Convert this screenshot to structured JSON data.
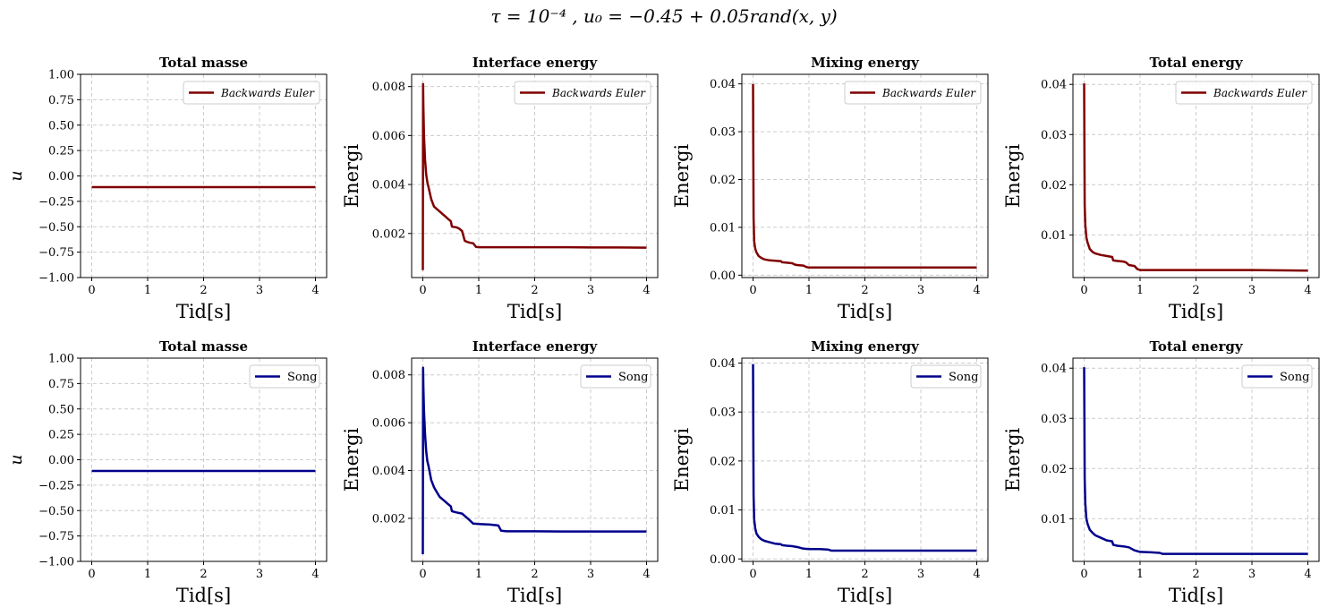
{
  "figure": {
    "suptitle": "τ = 10⁻⁴ , u₀ = −0.45 + 0.05rand(x, y)"
  },
  "chart_data": [
    {
      "type": "line",
      "title": "Total masse",
      "xlabel": "Tid[s]",
      "ylabel": "u",
      "xlim": [
        -0.2,
        4.2
      ],
      "ylim": [
        -1.0,
        1.0
      ],
      "xticks": [
        0,
        1,
        2,
        3,
        4
      ],
      "yticks": [
        -1.0,
        -0.75,
        -0.5,
        -0.25,
        0.0,
        0.25,
        0.5,
        0.75,
        1.0
      ],
      "ytick_labels": [
        "−1.00",
        "−0.75",
        "−0.50",
        "−0.25",
        "0.00",
        "0.25",
        "0.50",
        "0.75",
        "1.00"
      ],
      "grid": true,
      "legend": "top-right",
      "series": [
        {
          "name": "Backwards Euler",
          "color": "#800000",
          "x": [
            0,
            4
          ],
          "y": [
            -0.11,
            -0.11
          ]
        }
      ]
    },
    {
      "type": "line",
      "title": "Interface energy",
      "xlabel": "Tid[s]",
      "ylabel": "Energi",
      "xlim": [
        -0.2,
        4.2
      ],
      "ylim": [
        0.0002,
        0.0085
      ],
      "xticks": [
        0,
        1,
        2,
        3,
        4
      ],
      "yticks": [
        0.002,
        0.004,
        0.006,
        0.008
      ],
      "ytick_labels": [
        "0.002",
        "0.004",
        "0.006",
        "0.008"
      ],
      "grid": true,
      "legend": "top-right",
      "series": [
        {
          "name": "Backwards Euler",
          "color": "#800000",
          "x": [
            0,
            0.005,
            0.01,
            0.02,
            0.04,
            0.06,
            0.08,
            0.1,
            0.15,
            0.2,
            0.25,
            0.3,
            0.35,
            0.4,
            0.45,
            0.5,
            0.52,
            0.6,
            0.65,
            0.7,
            0.75,
            0.8,
            0.85,
            0.9,
            0.95,
            1.0,
            1.5,
            2.0,
            2.5,
            3.0,
            3.5,
            4.0
          ],
          "y": [
            0.0005,
            0.0081,
            0.0072,
            0.006,
            0.005,
            0.0044,
            0.0041,
            0.0039,
            0.0034,
            0.0031,
            0.003,
            0.0029,
            0.0028,
            0.0027,
            0.0026,
            0.0025,
            0.00228,
            0.00225,
            0.0022,
            0.0021,
            0.0017,
            0.00165,
            0.00162,
            0.0016,
            0.00145,
            0.00144,
            0.00144,
            0.00144,
            0.00144,
            0.00143,
            0.00143,
            0.00142
          ]
        }
      ]
    },
    {
      "type": "line",
      "title": "Mixing energy",
      "xlabel": "Tid[s]",
      "ylabel": "Energi",
      "xlim": [
        -0.2,
        4.2
      ],
      "ylim": [
        -0.0005,
        0.042
      ],
      "xticks": [
        0,
        1,
        2,
        3,
        4
      ],
      "yticks": [
        0.0,
        0.01,
        0.02,
        0.03,
        0.04
      ],
      "ytick_labels": [
        "0.00",
        "0.01",
        "0.02",
        "0.03",
        "0.04"
      ],
      "grid": true,
      "legend": "top-right",
      "series": [
        {
          "name": "Backwards Euler",
          "color": "#800000",
          "x": [
            0,
            0.005,
            0.01,
            0.02,
            0.04,
            0.06,
            0.1,
            0.15,
            0.2,
            0.3,
            0.4,
            0.5,
            0.52,
            0.6,
            0.7,
            0.75,
            0.8,
            0.9,
            0.95,
            1.0,
            1.5,
            2.0,
            3.0,
            4.0
          ],
          "y": [
            0.04,
            0.025,
            0.012,
            0.007,
            0.0055,
            0.0048,
            0.004,
            0.0036,
            0.0033,
            0.0031,
            0.003,
            0.0029,
            0.0027,
            0.0026,
            0.0025,
            0.0022,
            0.0021,
            0.002,
            0.0017,
            0.0016,
            0.0016,
            0.0016,
            0.0016,
            0.0016
          ]
        }
      ]
    },
    {
      "type": "line",
      "title": "Total energy",
      "xlabel": "Tid[s]",
      "ylabel": "Energi",
      "xlim": [
        -0.2,
        4.2
      ],
      "ylim": [
        0.0015,
        0.042
      ],
      "xticks": [
        0,
        1,
        2,
        3,
        4
      ],
      "yticks": [
        0.01,
        0.02,
        0.03,
        0.04
      ],
      "ytick_labels": [
        "0.01",
        "0.02",
        "0.03",
        "0.04"
      ],
      "grid": true,
      "legend": "top-right",
      "series": [
        {
          "name": "Backwards Euler",
          "color": "#800000",
          "x": [
            0,
            0.005,
            0.01,
            0.02,
            0.04,
            0.06,
            0.1,
            0.15,
            0.2,
            0.3,
            0.4,
            0.5,
            0.52,
            0.6,
            0.7,
            0.75,
            0.8,
            0.9,
            0.95,
            1.0,
            1.5,
            2.0,
            3.0,
            4.0
          ],
          "y": [
            0.0402,
            0.028,
            0.016,
            0.012,
            0.0095,
            0.0085,
            0.0072,
            0.0066,
            0.0063,
            0.006,
            0.0058,
            0.0056,
            0.0049,
            0.0048,
            0.0047,
            0.0045,
            0.004,
            0.0038,
            0.0032,
            0.003,
            0.003,
            0.003,
            0.003,
            0.0029
          ]
        }
      ]
    },
    {
      "type": "line",
      "title": "Total masse",
      "xlabel": "Tid[s]",
      "ylabel": "u",
      "xlim": [
        -0.2,
        4.2
      ],
      "ylim": [
        -1.0,
        1.0
      ],
      "xticks": [
        0,
        1,
        2,
        3,
        4
      ],
      "yticks": [
        -1.0,
        -0.75,
        -0.5,
        -0.25,
        0.0,
        0.25,
        0.5,
        0.75,
        1.0
      ],
      "ytick_labels": [
        "−1.00",
        "−0.75",
        "−0.50",
        "−0.25",
        "0.00",
        "0.25",
        "0.50",
        "0.75",
        "1.00"
      ],
      "grid": true,
      "legend": "top-right",
      "series": [
        {
          "name": "Song",
          "color": "#00008b",
          "x": [
            0,
            4
          ],
          "y": [
            -0.11,
            -0.11
          ]
        }
      ]
    },
    {
      "type": "line",
      "title": "Interface energy",
      "xlabel": "Tid[s]",
      "ylabel": "Energi",
      "xlim": [
        -0.2,
        4.2
      ],
      "ylim": [
        0.0002,
        0.0087
      ],
      "xticks": [
        0,
        1,
        2,
        3,
        4
      ],
      "yticks": [
        0.002,
        0.004,
        0.006,
        0.008
      ],
      "ytick_labels": [
        "0.002",
        "0.004",
        "0.006",
        "0.008"
      ],
      "grid": true,
      "legend": "top-right",
      "series": [
        {
          "name": "Song",
          "color": "#00008b",
          "x": [
            0,
            0.005,
            0.01,
            0.02,
            0.04,
            0.06,
            0.08,
            0.1,
            0.15,
            0.2,
            0.25,
            0.3,
            0.35,
            0.4,
            0.45,
            0.5,
            0.52,
            0.6,
            0.7,
            0.8,
            0.9,
            1.0,
            1.2,
            1.35,
            1.4,
            1.5,
            2.0,
            2.5,
            3.0,
            3.5,
            4.0
          ],
          "y": [
            0.0005,
            0.0083,
            0.0075,
            0.0065,
            0.0055,
            0.0048,
            0.0044,
            0.0042,
            0.0036,
            0.0033,
            0.0031,
            0.0029,
            0.0028,
            0.0027,
            0.0026,
            0.0025,
            0.0023,
            0.00225,
            0.0022,
            0.002,
            0.00178,
            0.00176,
            0.00174,
            0.0017,
            0.00148,
            0.00146,
            0.00146,
            0.00145,
            0.00145,
            0.00145,
            0.00145
          ]
        }
      ]
    },
    {
      "type": "line",
      "title": "Mixing energy",
      "xlabel": "Tid[s]",
      "ylabel": "Energi",
      "xlim": [
        -0.2,
        4.2
      ],
      "ylim": [
        -0.0005,
        0.041
      ],
      "xticks": [
        0,
        1,
        2,
        3,
        4
      ],
      "yticks": [
        0.0,
        0.01,
        0.02,
        0.03,
        0.04
      ],
      "ytick_labels": [
        "0.00",
        "0.01",
        "0.02",
        "0.03",
        "0.04"
      ],
      "grid": true,
      "legend": "top-right",
      "series": [
        {
          "name": "Song",
          "color": "#00008b",
          "x": [
            0,
            0.005,
            0.01,
            0.02,
            0.04,
            0.06,
            0.1,
            0.15,
            0.2,
            0.3,
            0.4,
            0.5,
            0.52,
            0.6,
            0.7,
            0.8,
            0.9,
            1.0,
            1.2,
            1.35,
            1.4,
            1.5,
            2.0,
            3.0,
            4.0
          ],
          "y": [
            0.0398,
            0.025,
            0.013,
            0.008,
            0.0062,
            0.0052,
            0.0045,
            0.004,
            0.0037,
            0.0034,
            0.0031,
            0.003,
            0.0028,
            0.0027,
            0.0026,
            0.0024,
            0.0021,
            0.002,
            0.002,
            0.0019,
            0.0017,
            0.0017,
            0.0017,
            0.0017,
            0.0017
          ]
        }
      ]
    },
    {
      "type": "line",
      "title": "Total energy",
      "xlabel": "Tid[s]",
      "ylabel": "Energi",
      "xlim": [
        -0.2,
        4.2
      ],
      "ylim": [
        0.0015,
        0.042
      ],
      "xticks": [
        0,
        1,
        2,
        3,
        4
      ],
      "yticks": [
        0.01,
        0.02,
        0.03,
        0.04
      ],
      "ytick_labels": [
        "0.01",
        "0.02",
        "0.03",
        "0.04"
      ],
      "grid": true,
      "legend": "top-right",
      "series": [
        {
          "name": "Song",
          "color": "#00008b",
          "x": [
            0,
            0.005,
            0.01,
            0.02,
            0.04,
            0.06,
            0.1,
            0.15,
            0.2,
            0.3,
            0.4,
            0.5,
            0.52,
            0.6,
            0.7,
            0.8,
            0.9,
            1.0,
            1.2,
            1.35,
            1.4,
            1.5,
            2.0,
            3.0,
            4.0
          ],
          "y": [
            0.0402,
            0.03,
            0.018,
            0.013,
            0.01,
            0.009,
            0.0078,
            0.0072,
            0.0067,
            0.0062,
            0.0057,
            0.0055,
            0.0048,
            0.0046,
            0.0045,
            0.0043,
            0.0037,
            0.0034,
            0.0033,
            0.0032,
            0.003,
            0.003,
            0.003,
            0.003,
            0.003
          ]
        }
      ]
    }
  ]
}
